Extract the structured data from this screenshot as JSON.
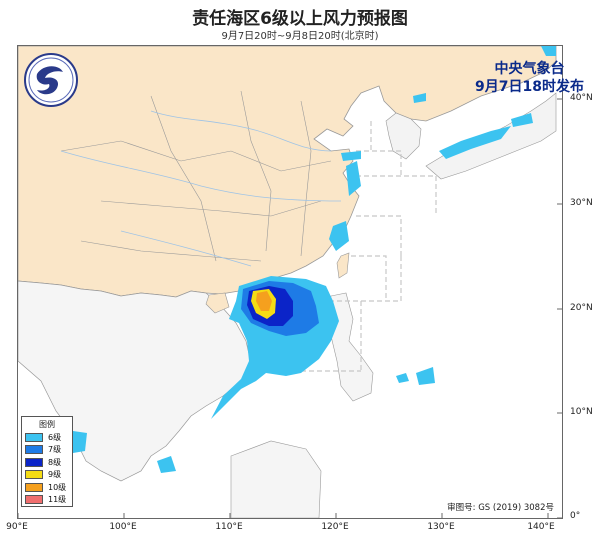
{
  "title": "责任海区6级以上风力预报图",
  "subtitle": "9月7日20时~9月8日20时(北京时)",
  "issuer": {
    "line1": "中央气象台",
    "line2": "9月7日18时发布"
  },
  "legend": {
    "title": "图例",
    "items": [
      {
        "label": "6级",
        "color": "#3cc3f0"
      },
      {
        "label": "7级",
        "color": "#1e7be6"
      },
      {
        "label": "8级",
        "color": "#0b24c8"
      },
      {
        "label": "9级",
        "color": "#f5dc14"
      },
      {
        "label": "10级",
        "color": "#f5a01e"
      },
      {
        "label": "11级",
        "color": "#f06e6e"
      }
    ]
  },
  "approval": "审图号: GS (2019) 3082号",
  "x_ticks": [
    "90°E",
    "100°E",
    "110°E",
    "120°E",
    "130°E",
    "140°E"
  ],
  "y_ticks": [
    "40°N",
    "30°N",
    "20°N",
    "10°N",
    "0°"
  ],
  "colors": {
    "land_china": "#fae6c8",
    "sea": "#ffffff",
    "border": "#888888",
    "river": "#9ec3e6"
  }
}
